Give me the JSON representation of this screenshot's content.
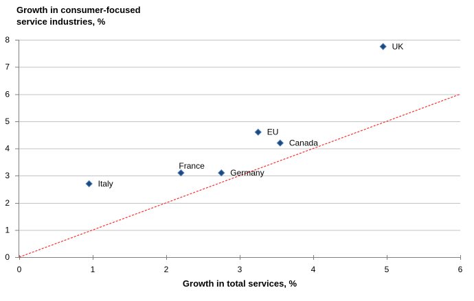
{
  "chart_data": {
    "type": "scatter",
    "title_line1": "Growth in consumer-focused",
    "title_line2": "service industries, %",
    "xlabel": "Growth in total services, %",
    "ylabel": "",
    "xlim": [
      0,
      6
    ],
    "ylim": [
      0,
      8
    ],
    "x_ticks": [
      0,
      1,
      2,
      3,
      4,
      5,
      6
    ],
    "y_ticks": [
      0,
      1,
      2,
      3,
      4,
      5,
      6,
      7,
      8
    ],
    "grid": "horizontal",
    "legend": "none",
    "points": [
      {
        "name": "Italy",
        "x": 0.95,
        "y": 2.7,
        "label_pos": "right"
      },
      {
        "name": "France",
        "x": 2.2,
        "y": 3.1,
        "label_pos": "above"
      },
      {
        "name": "Germany",
        "x": 2.75,
        "y": 3.1,
        "label_pos": "right"
      },
      {
        "name": "EU",
        "x": 3.25,
        "y": 4.6,
        "label_pos": "right"
      },
      {
        "name": "Canada",
        "x": 3.55,
        "y": 4.2,
        "label_pos": "right"
      },
      {
        "name": "UK",
        "x": 4.95,
        "y": 7.75,
        "label_pos": "right"
      }
    ],
    "reference_line": {
      "x1": 0,
      "y1": 0,
      "x2": 6,
      "y2": 6,
      "style": "dashed"
    },
    "colors": {
      "marker_fill": "#1F497D",
      "marker_edge": "#4F81BD",
      "reference_line": "#FF2B2B",
      "gridline": "#C3C3C3",
      "axis": "#7F7F7F",
      "text": "#000000"
    }
  }
}
